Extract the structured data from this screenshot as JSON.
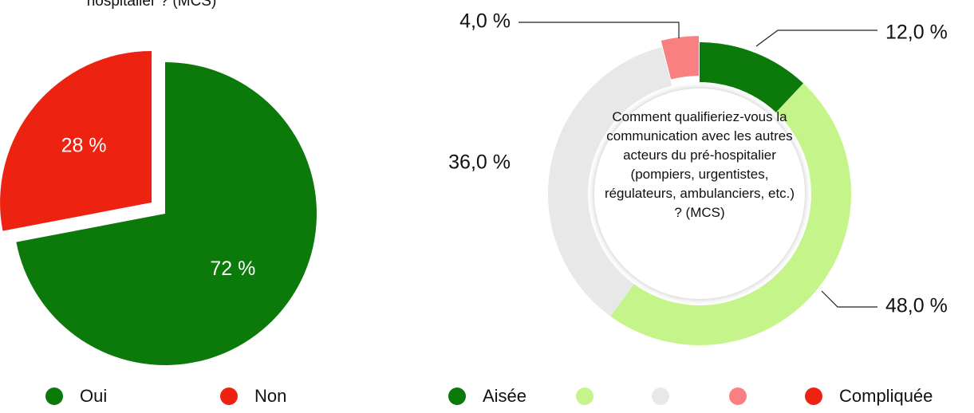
{
  "chart_data": [
    {
      "type": "pie",
      "title": "hospitalier ? (MCS)",
      "categories": [
        "Oui",
        "Non"
      ],
      "values": [
        72,
        28
      ],
      "value_labels": [
        "72 %",
        "28 %"
      ],
      "colors": [
        "#0b7a0b",
        "#ee2211"
      ],
      "legend": "bottom"
    },
    {
      "type": "donut",
      "title": "Comment qualifieriez-vous la communication avec les autres acteurs du pré-hospitalier (pompiers, urgentistes, régulateurs, ambulanciers, etc.) ? (MCS)",
      "categories": [
        "Aisée",
        null,
        null,
        null,
        "Compliquée"
      ],
      "values": [
        12,
        48,
        36,
        4,
        0
      ],
      "value_labels": [
        "12,0 %",
        "48,0 %",
        "36,0 %",
        "4,0 %",
        null
      ],
      "colors": [
        "#0b7a0b",
        "#c5f58a",
        "#e8e8e8",
        "#f88080",
        "#ee2211"
      ],
      "legend": "bottom"
    }
  ]
}
